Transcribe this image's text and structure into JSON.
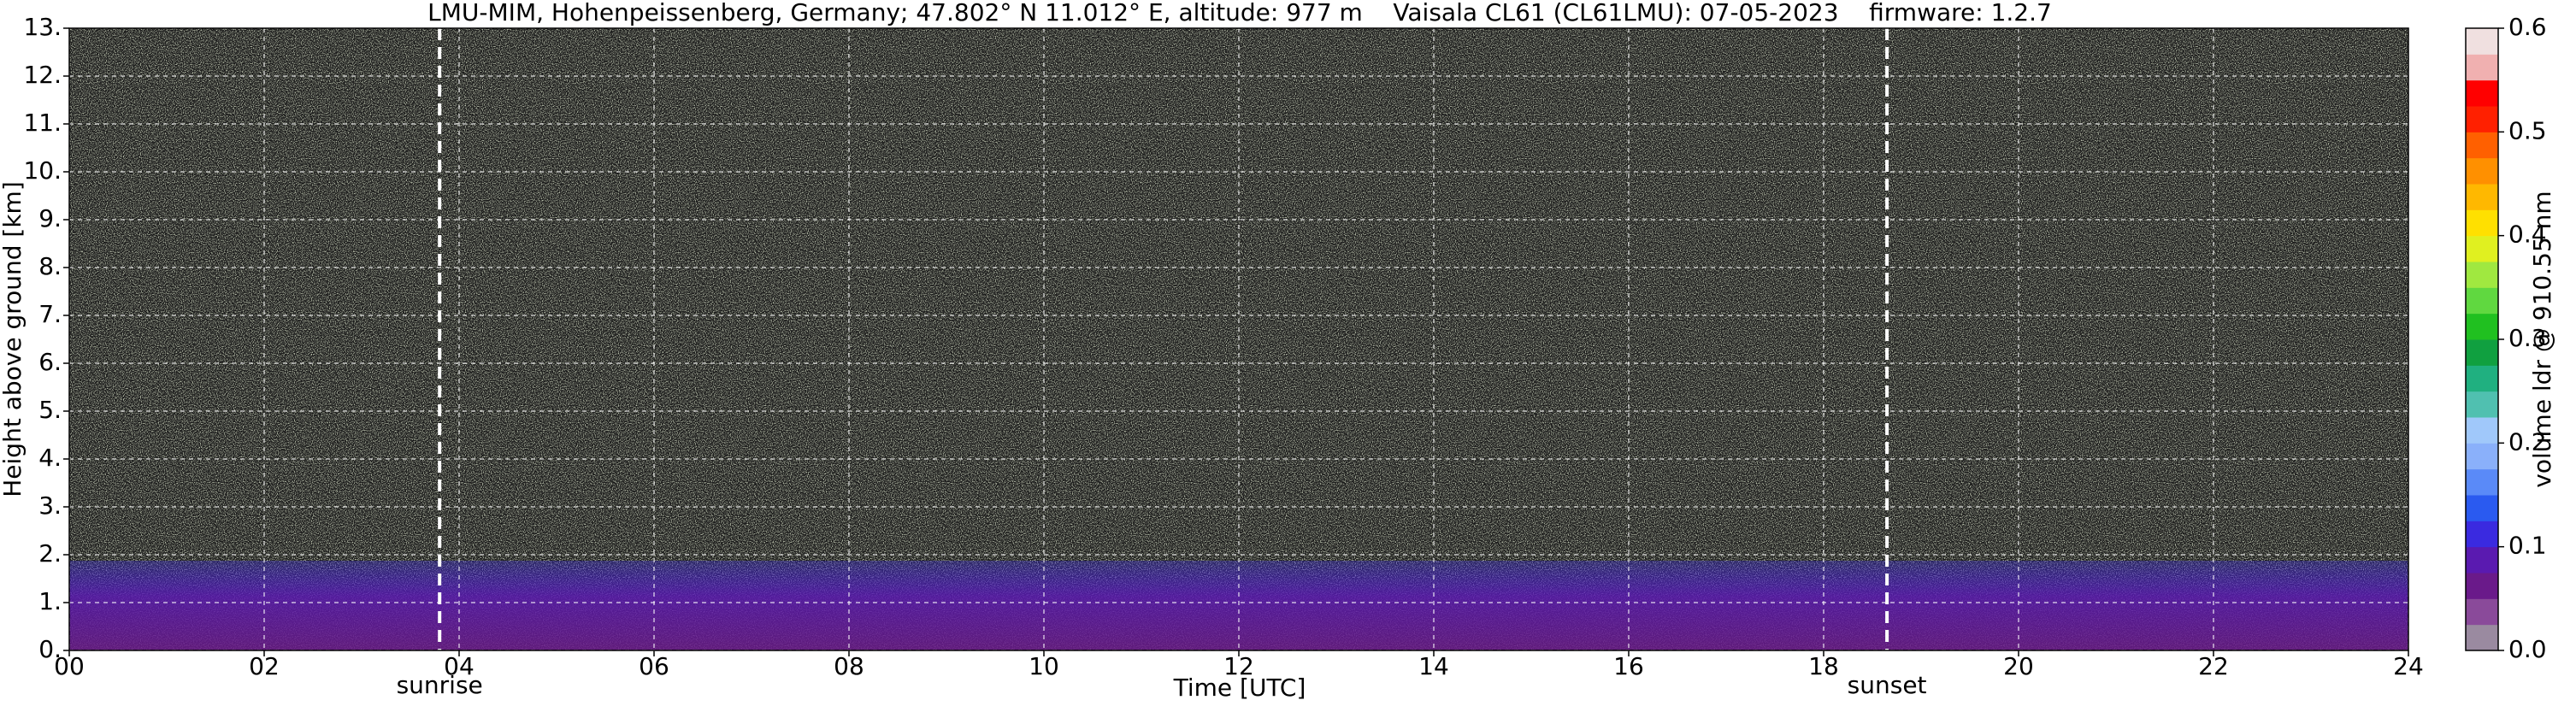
{
  "chart_data": {
    "type": "heatmap",
    "title": "LMU-MIM, Hohenpeissenberg, Germany; 47.802° N 11.012° E, altitude: 977 m    Vaisala CL61 (CL61LMU): 07-05-2023    firmware: 1.2.7",
    "xlabel": "Time [UTC]",
    "ylabel": "Height above ground [km]",
    "xlim": [
      0,
      24
    ],
    "xticks": [
      {
        "value": 0,
        "label": "00"
      },
      {
        "value": 2,
        "label": "02"
      },
      {
        "value": 4,
        "label": "04"
      },
      {
        "value": 6,
        "label": "06"
      },
      {
        "value": 8,
        "label": "08"
      },
      {
        "value": 10,
        "label": "10"
      },
      {
        "value": 12,
        "label": "12"
      },
      {
        "value": 14,
        "label": "14"
      },
      {
        "value": 16,
        "label": "16"
      },
      {
        "value": 18,
        "label": "18"
      },
      {
        "value": 20,
        "label": "20"
      },
      {
        "value": 22,
        "label": "22"
      },
      {
        "value": 24,
        "label": "24"
      }
    ],
    "ylim": [
      0,
      13
    ],
    "yticks": [
      {
        "value": 0,
        "label": "0."
      },
      {
        "value": 1,
        "label": "1."
      },
      {
        "value": 2,
        "label": "2."
      },
      {
        "value": 3,
        "label": "3."
      },
      {
        "value": 4,
        "label": "4."
      },
      {
        "value": 5,
        "label": "5."
      },
      {
        "value": 6,
        "label": "6."
      },
      {
        "value": 7,
        "label": "7."
      },
      {
        "value": 8,
        "label": "8."
      },
      {
        "value": 9,
        "label": "9."
      },
      {
        "value": 10,
        "label": "10."
      },
      {
        "value": 11,
        "label": "11."
      },
      {
        "value": 12,
        "label": "12."
      },
      {
        "value": 13,
        "label": "13."
      }
    ],
    "grid": true,
    "annotations": [
      {
        "text": "sunrise",
        "x": 3.8
      },
      {
        "text": "sunset",
        "x": 18.65
      }
    ],
    "colorbar": {
      "label": "volume ldr @ 910.55 nm",
      "lim": [
        0,
        0.6
      ],
      "ticks": [
        {
          "value": 0,
          "label": "0.0"
        },
        0.1,
        0.2,
        0.3,
        0.4,
        0.5,
        0.6
      ],
      "colors": [
        "#9a8aa0",
        "#8a4a9a",
        "#6a1a8a",
        "#5a1ab0",
        "#3a2ae0",
        "#2a5af0",
        "#5a8af8",
        "#8ab0fa",
        "#a0c8fa",
        "#50c0b0",
        "#20b080",
        "#10a040",
        "#20c020",
        "#60d840",
        "#a0e840",
        "#e0f020",
        "#ffe000",
        "#ffb800",
        "#ff9000",
        "#ff6000",
        "#ff2000",
        "#ff0000",
        "#f0b0b0",
        "#f0e0e0"
      ]
    }
  }
}
